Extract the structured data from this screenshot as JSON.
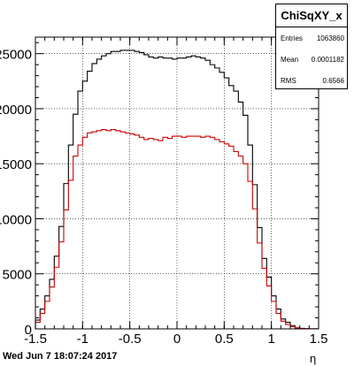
{
  "stats": {
    "title": "ChiSqXY_x",
    "rows": [
      {
        "key": "Entries",
        "value": "1063860"
      },
      {
        "key": "Mean",
        "value": "0.0001182"
      },
      {
        "key": "RMS",
        "value": "0.6566"
      }
    ]
  },
  "footer_date": "Wed Jun  7 18:07:24 2017",
  "chart_data": {
    "type": "line",
    "xlabel": "η",
    "xlim": [
      -1.5,
      1.5
    ],
    "ylim": [
      0,
      26500
    ],
    "x_ticks": [
      "-1.5",
      "-1",
      "-0.5",
      "0",
      "0.5",
      "1",
      "1.5"
    ],
    "y_tick_labels": [
      {
        "value": 5000,
        "label": "5000"
      },
      {
        "value": 10000,
        "label": "10000"
      },
      {
        "value": 15000,
        "label": "15000"
      },
      {
        "value": 20000,
        "label": "20000"
      },
      {
        "value": 25000,
        "label": "25000"
      }
    ],
    "grid": true,
    "bin_edges_start": -1.5,
    "bin_width": 0.05,
    "series": [
      {
        "color": "#000000",
        "values": [
          800,
          1800,
          3000,
          4500,
          6600,
          9300,
          13200,
          16700,
          19500,
          21600,
          22500,
          23400,
          24100,
          24500,
          24800,
          25000,
          25200,
          25200,
          25300,
          25300,
          25300,
          25200,
          25100,
          24900,
          24700,
          24600,
          24700,
          24600,
          24600,
          24500,
          24600,
          24600,
          24700,
          24800,
          24700,
          24600,
          24400,
          24000,
          23700,
          23300,
          22800,
          22100,
          21600,
          20600,
          19400,
          16700,
          13100,
          9200,
          6400,
          4700,
          3000,
          1800,
          900,
          600,
          300,
          100,
          50,
          20,
          10,
          5
        ]
      },
      {
        "color": "#cc0000",
        "values": [
          600,
          1400,
          2500,
          3800,
          5600,
          7900,
          10800,
          13500,
          15700,
          16700,
          17400,
          17800,
          17900,
          18000,
          18100,
          18000,
          18100,
          18000,
          17900,
          17800,
          17700,
          17600,
          17400,
          17200,
          17300,
          17200,
          17100,
          17400,
          17300,
          17500,
          17500,
          17400,
          17500,
          17500,
          17500,
          17400,
          17500,
          17400,
          17200,
          17000,
          16800,
          16600,
          16100,
          15700,
          15000,
          13400,
          10900,
          7800,
          5500,
          3900,
          2500,
          1400,
          700,
          400,
          200,
          80,
          40,
          15,
          8,
          4
        ]
      }
    ]
  }
}
